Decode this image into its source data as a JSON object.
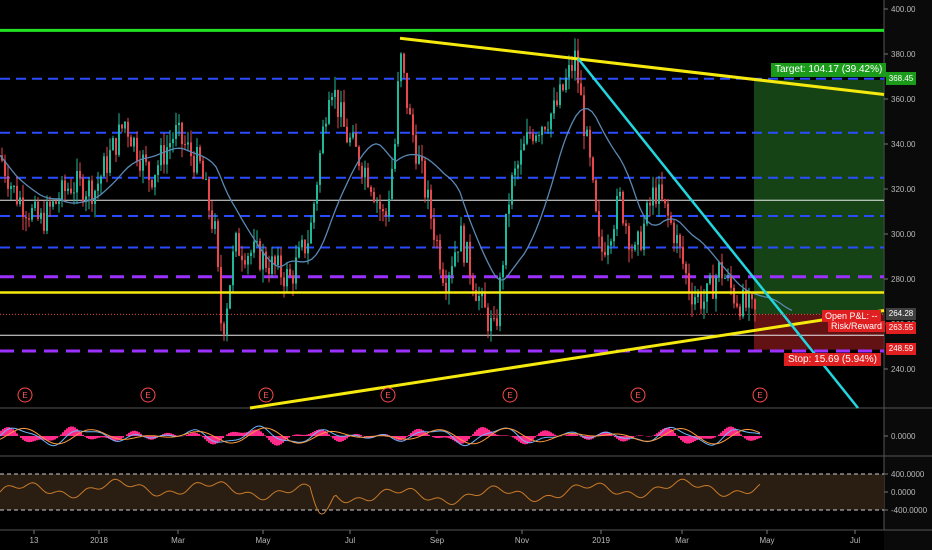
{
  "chart_data": {
    "type": "candlestick",
    "price_axis": {
      "ticks": [
        "400.00",
        "380.00",
        "360.00",
        "340.00",
        "320.00",
        "300.00",
        "280.00",
        "260.00",
        "240.00"
      ],
      "ylim": [
        222,
        405
      ]
    },
    "x_axis_labels": [
      "13",
      "2018",
      "Mar",
      "May",
      "Jul",
      "Sep",
      "Nov",
      "2019",
      "Mar",
      "May",
      "Jul"
    ],
    "events": [
      "E",
      "E",
      "E",
      "E",
      "E",
      "E",
      "E"
    ],
    "horizontal_levels": {
      "green_top": 390.5,
      "blue_dashed": [
        369,
        345,
        325,
        308,
        294
      ],
      "white_solid": [
        315,
        255
      ],
      "purple_dashed": [
        281,
        248
      ]
    },
    "trendlines": [
      {
        "name": "upper-yellow",
        "from": [
          "2018-08",
          "387"
        ],
        "to": [
          "2019-07",
          "362"
        ]
      },
      {
        "name": "lower-yellow",
        "from": [
          "2018-05",
          "222"
        ],
        "to": [
          "2019-07",
          "266"
        ]
      },
      {
        "name": "horizontal-yellow",
        "value": 274
      },
      {
        "name": "cyan",
        "from": [
          "2018-12",
          "378"
        ],
        "to": [
          "2019-06",
          "222"
        ]
      }
    ],
    "position": {
      "target_label": "Target: 104.17 (39.42%)",
      "target_price": "368.45",
      "entry_price": "264.28",
      "current_price": "263.55",
      "stop_label": "Stop: 15.69 (5.94%)",
      "stop_price": "248.59",
      "pnl_label": "Open P&L: --",
      "rr_label": "Risk/Reward"
    },
    "oscillator_1": {
      "ticks": [
        "0.0000"
      ]
    },
    "oscillator_2": {
      "ticks": [
        "400.0000",
        "0.0000",
        "-400.0000"
      ]
    }
  },
  "colors": {
    "up": "#1fb89a",
    "down": "#e8474b",
    "yellow": "#f5e90e",
    "cyan": "#22d6e0",
    "blue": "#2a4cff",
    "purple": "#9b30ff",
    "green": "#23e023",
    "ma": "#5a88b4"
  }
}
